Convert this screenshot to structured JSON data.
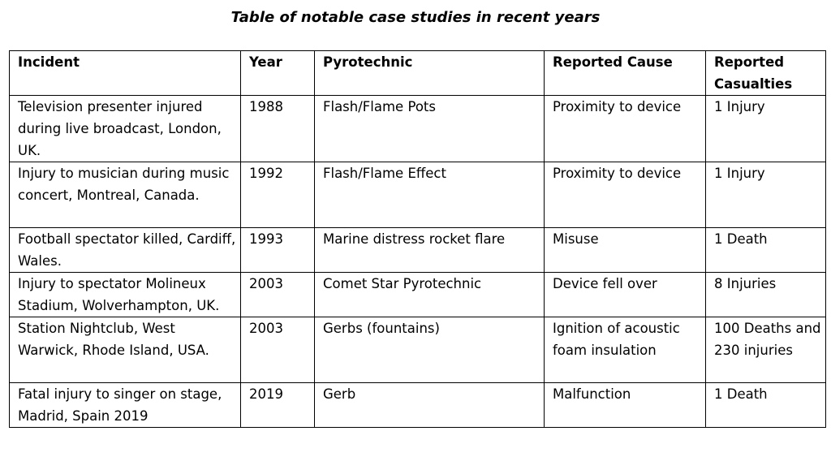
{
  "title": "Table of notable case studies in recent years",
  "table": {
    "header": [
      "Incident",
      "Year",
      "Pyrotechnic",
      "Reported Cause",
      "Reported Casualties"
    ],
    "rows": [
      [
        "Television presenter injured during live broadcast, London, UK.",
        "1988",
        "Flash/Flame Pots",
        "Proximity to device",
        "1 Injury"
      ],
      [
        "Injury to musician during music concert, Montreal, Canada.",
        "1992",
        "Flash/Flame Effect",
        "Proximity to device",
        "1 Injury"
      ],
      [
        "Football spectator killed, Cardiff, Wales.",
        "1993",
        "Marine distress rocket flare",
        "Misuse",
        "1 Death"
      ],
      [
        "Injury to spectator Molineux Stadium, Wolverhampton, UK.",
        "2003",
        "Comet Star Pyrotechnic",
        "Device fell over",
        "8 Injuries"
      ],
      [
        "Station Nightclub, West Warwick, Rhode Island, USA.",
        "2003",
        "Gerbs (fountains)",
        "Ignition of acoustic foam insulation",
        "100 Deaths and 230 injuries"
      ],
      [
        "Fatal injury to singer on stage, Madrid, Spain 2019",
        "2019",
        "Gerb",
        "Malfunction",
        "1 Death"
      ]
    ]
  }
}
